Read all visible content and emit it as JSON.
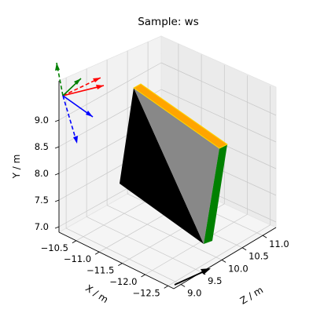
{
  "chart_data": {
    "type": "3d-surface",
    "title": "Sample: ws",
    "xlabel": "X / m",
    "ylabel": "Y / m",
    "zlabel": "Z / m",
    "x_ticks": [
      "−10.5",
      "−11.0",
      "−11.5",
      "−12.0",
      "−12.5"
    ],
    "y_ticks": [
      "7.0",
      "7.5",
      "8.0",
      "8.5",
      "9.0"
    ],
    "z_ticks": [
      "9.0",
      "9.5",
      "10.0",
      "10.5",
      "11.0"
    ],
    "colors": {
      "sample_front": "#888888",
      "sample_back": "#000000",
      "sample_top": "#ffa500",
      "sample_top_edge": "#ffd700",
      "sample_side": "#008000",
      "frame_x": "#ff0000",
      "frame_y": "#008000",
      "frame_z": "#0000ff",
      "beam": "#000000"
    }
  }
}
